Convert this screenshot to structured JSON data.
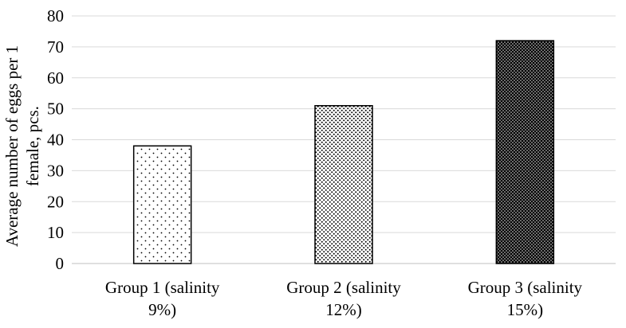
{
  "chart_data": {
    "type": "bar",
    "title": "",
    "ylabel_lines": [
      "Average number of eggs per 1",
      "female, pcs."
    ],
    "xlabel": "",
    "categories": [
      [
        "Group 1 (salinity",
        "9%)"
      ],
      [
        "Group 2 (salinity",
        "12%)"
      ],
      [
        "Group 3 (salinity",
        "15%)"
      ]
    ],
    "values": [
      38,
      51,
      72
    ],
    "ylim": [
      0,
      80
    ],
    "yticks": [
      0,
      10,
      20,
      30,
      40,
      50,
      60,
      70,
      80
    ],
    "grid": true,
    "legend": "none",
    "bar_patterns": [
      "sparse-dots",
      "medium-dots",
      "dense-dots"
    ],
    "colors": {
      "bar_edge": "#000000",
      "grid": "#d9d9d9",
      "pattern": "#000000",
      "background": "#ffffff"
    }
  }
}
